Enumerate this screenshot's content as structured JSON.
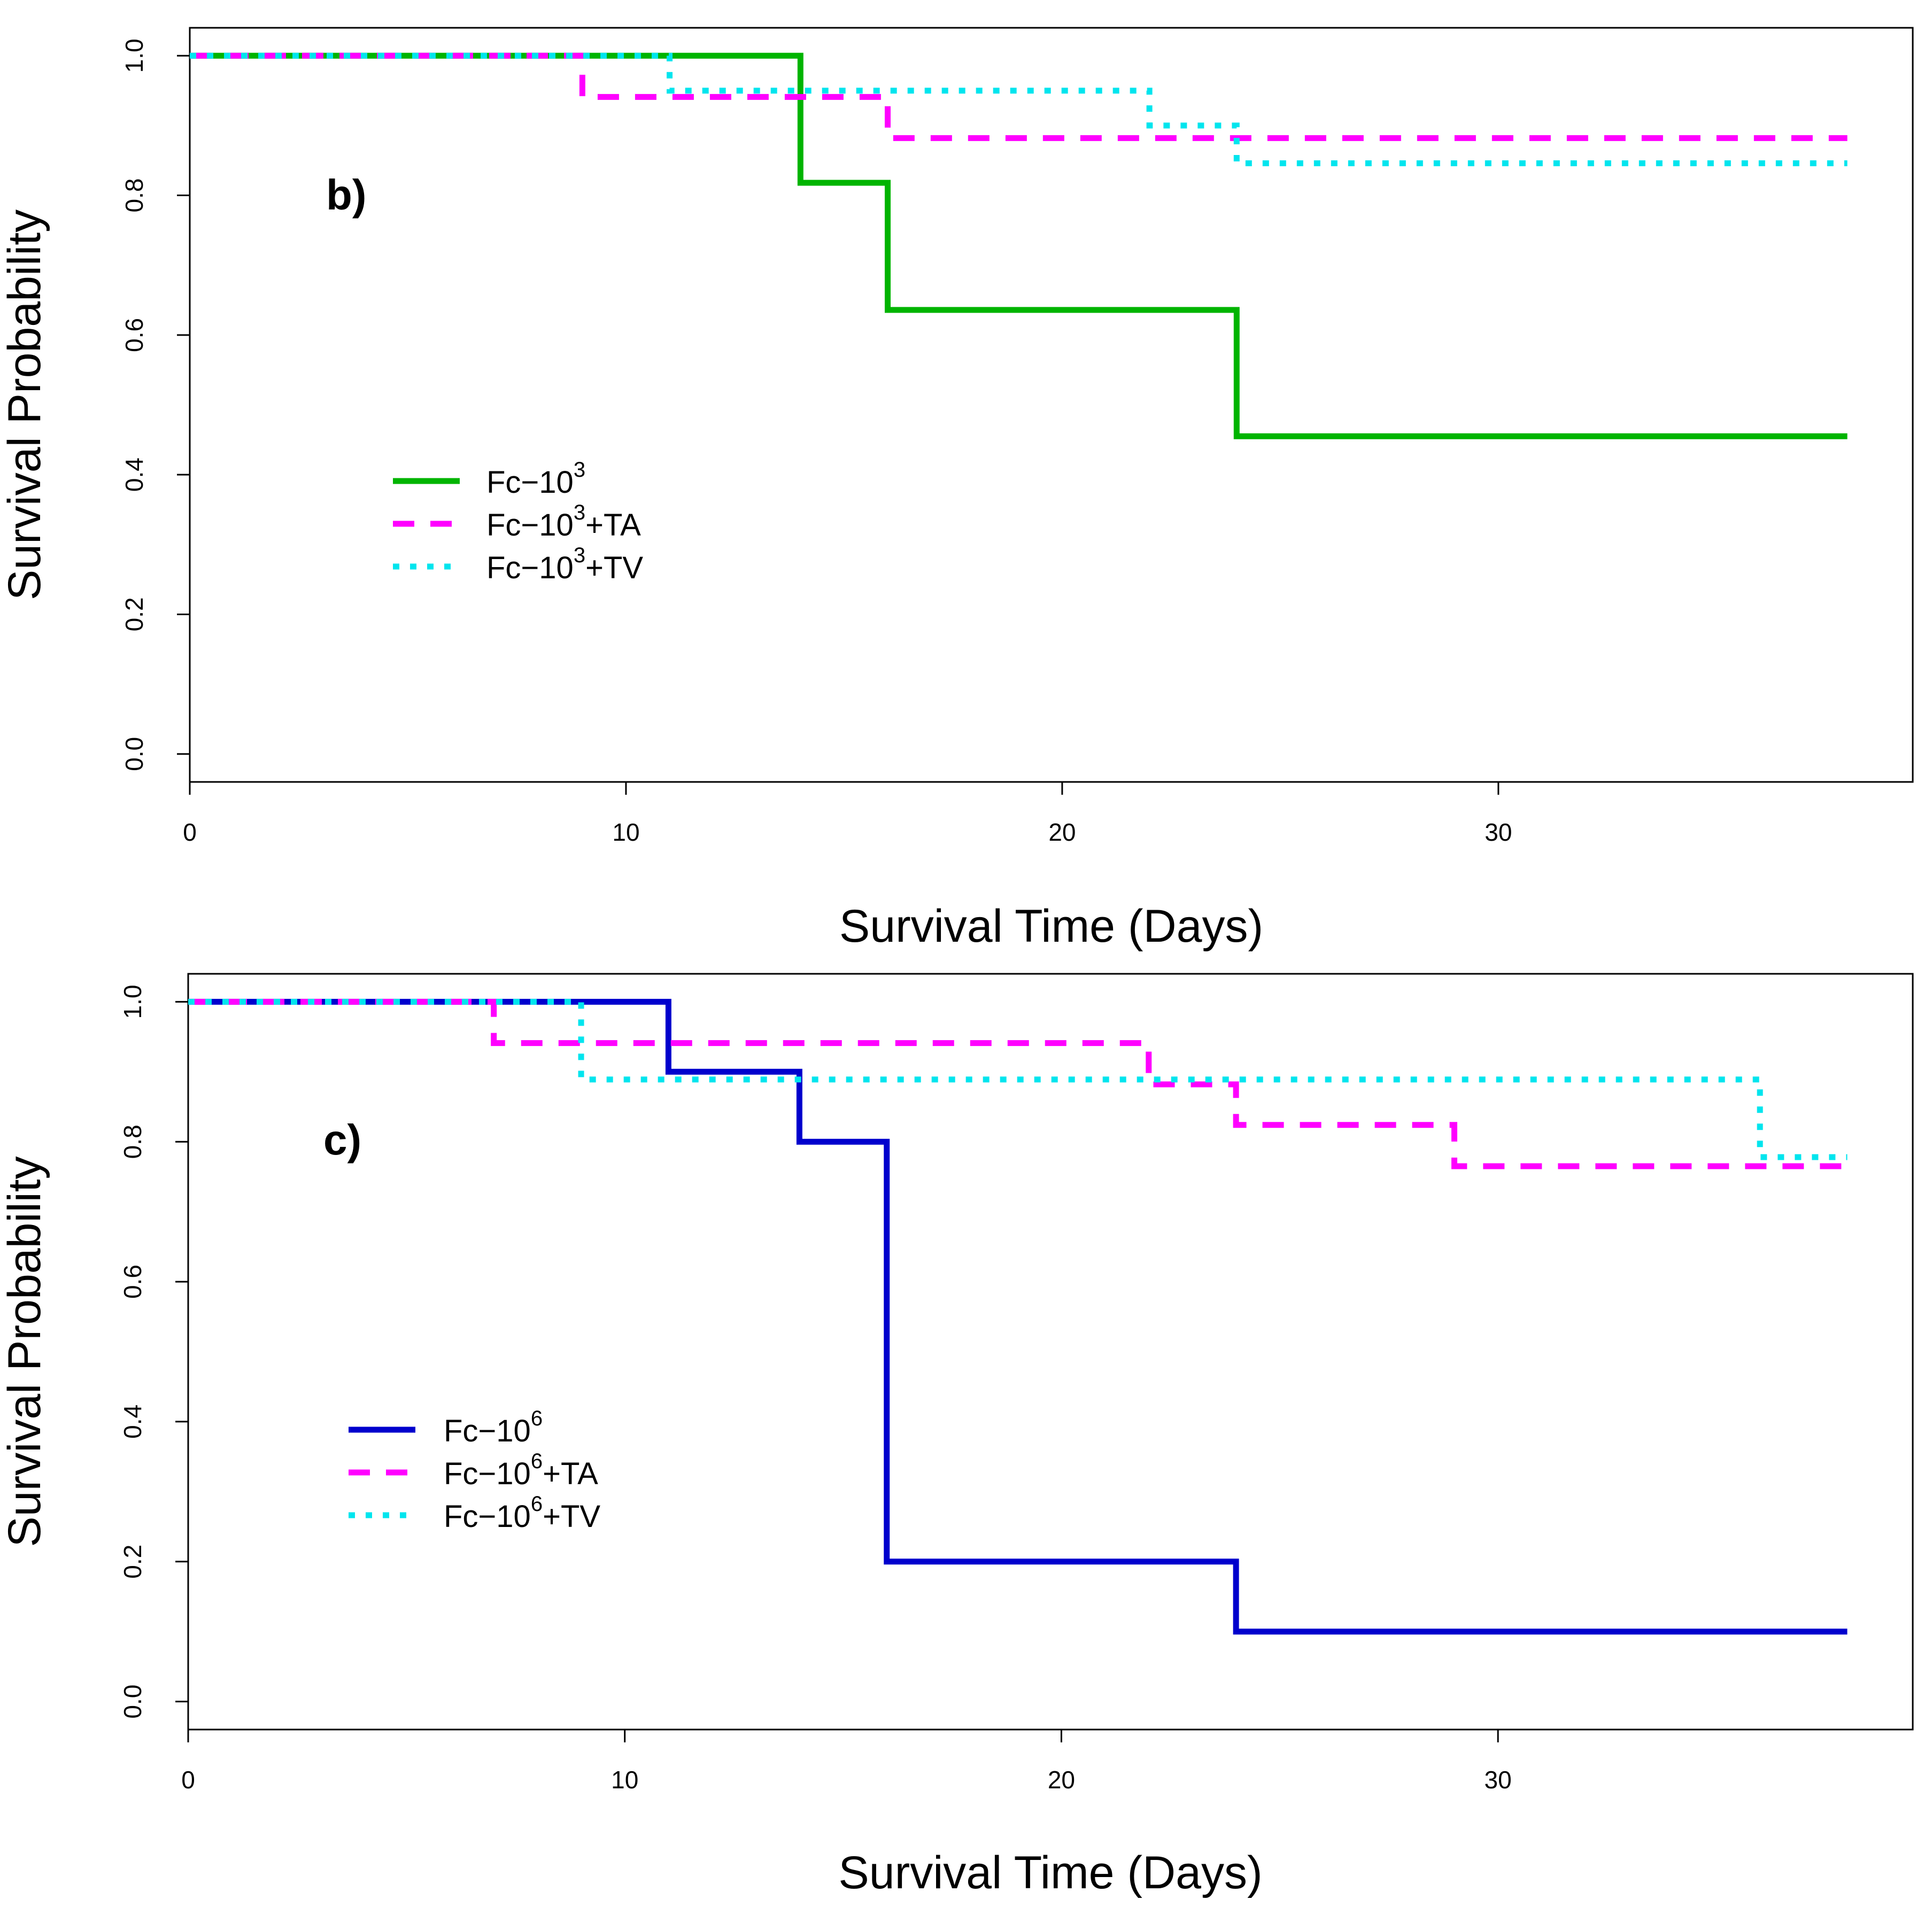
{
  "chart_data": [
    {
      "type": "line",
      "panel_label": "b)",
      "xlabel": "Survival Time (Days)",
      "ylabel": "Survival Probability",
      "xlim": [
        0,
        39.5
      ],
      "ylim": [
        -0.04,
        1.04
      ],
      "x_ticks": [
        0,
        10,
        20,
        30
      ],
      "x_tick_labels": [
        "0",
        "10",
        "20",
        "30"
      ],
      "y_ticks": [
        0.0,
        0.2,
        0.4,
        0.6,
        0.8,
        1.0
      ],
      "y_tick_labels": [
        "0.0",
        "0.2",
        "0.4",
        "0.6",
        "0.8",
        "1.0"
      ],
      "grid": false,
      "legend_position": "left-middle",
      "series": [
        {
          "legend_base": "Fc−10",
          "legend_sup": "3",
          "legend_suffix": "",
          "color": "#00b400",
          "style": "solid",
          "x": [
            0,
            14,
            16,
            24,
            38
          ],
          "y": [
            1.0,
            0.818,
            0.636,
            0.455,
            0.455
          ]
        },
        {
          "legend_base": "Fc−10",
          "legend_sup": "3",
          "legend_suffix": "+TA",
          "color": "#ff00ff",
          "style": "dashed",
          "x": [
            0,
            9,
            16,
            38
          ],
          "y": [
            1.0,
            0.941,
            0.882,
            0.882
          ]
        },
        {
          "legend_base": "Fc−10",
          "legend_sup": "3",
          "legend_suffix": "+TV",
          "color": "#00e5ee",
          "style": "dotted",
          "x": [
            0,
            11,
            22,
            24,
            38
          ],
          "y": [
            1.0,
            0.95,
            0.9,
            0.846,
            0.846
          ]
        }
      ]
    },
    {
      "type": "line",
      "panel_label": "c)",
      "xlabel": "Survival Time (Days)",
      "ylabel": "Survival Probability",
      "xlim": [
        0,
        39.5
      ],
      "ylim": [
        -0.04,
        1.04
      ],
      "x_ticks": [
        0,
        10,
        20,
        30
      ],
      "x_tick_labels": [
        "0",
        "10",
        "20",
        "30"
      ],
      "y_ticks": [
        0.0,
        0.2,
        0.4,
        0.6,
        0.8,
        1.0
      ],
      "y_tick_labels": [
        "0.0",
        "0.2",
        "0.4",
        "0.6",
        "0.8",
        "1.0"
      ],
      "grid": false,
      "legend_position": "left-middle",
      "series": [
        {
          "legend_base": "Fc−10",
          "legend_sup": "6",
          "legend_suffix": "",
          "color": "#0000cd",
          "style": "solid",
          "x": [
            0,
            11,
            14,
            16,
            24,
            38
          ],
          "y": [
            1.0,
            0.9,
            0.8,
            0.2,
            0.1,
            0.1
          ]
        },
        {
          "legend_base": "Fc−10",
          "legend_sup": "6",
          "legend_suffix": "+TA",
          "color": "#ff00ff",
          "style": "dashed",
          "x": [
            0,
            7,
            22,
            24,
            29,
            38
          ],
          "y": [
            1.0,
            0.941,
            0.882,
            0.824,
            0.765,
            0.765
          ]
        },
        {
          "legend_base": "Fc−10",
          "legend_sup": "6",
          "legend_suffix": "+TV",
          "color": "#00e5ee",
          "style": "dotted",
          "x": [
            0,
            9,
            36,
            38
          ],
          "y": [
            1.0,
            0.889,
            0.778,
            0.778
          ]
        }
      ]
    }
  ]
}
